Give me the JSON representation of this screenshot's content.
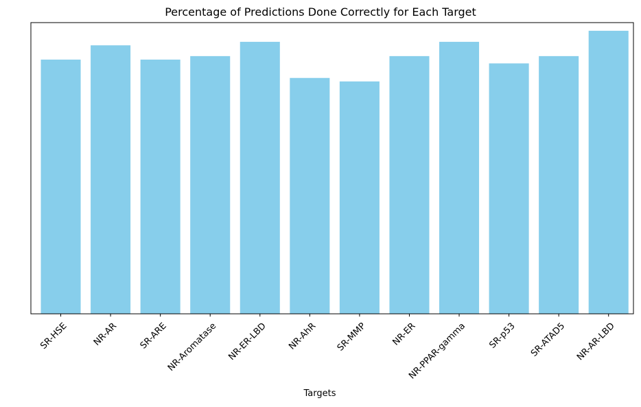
{
  "chart_data": {
    "type": "bar",
    "title": "Percentage of Predictions Done Correctly for Each Target",
    "xlabel": "Targets",
    "ylabel": "",
    "categories": [
      "SR-HSE",
      "NR-AR",
      "SR-ARE",
      "NR-Aromatase",
      "NR-ER-LBD",
      "NR-AhR",
      "SR-MMP",
      "NR-ER",
      "NR-PPAR-gamma",
      "SR-p53",
      "SR-ATAD5",
      "NR-AR-LBD"
    ],
    "values": [
      0.873,
      0.922,
      0.873,
      0.885,
      0.934,
      0.81,
      0.798,
      0.885,
      0.934,
      0.86,
      0.885,
      0.972
    ],
    "ylim": [
      0,
      1.0
    ],
    "y_ticks_visible": false,
    "grid": false,
    "legend": "none",
    "colors": {
      "bar": "#87CEEB",
      "axes": "#000000",
      "background": "#ffffff"
    }
  }
}
